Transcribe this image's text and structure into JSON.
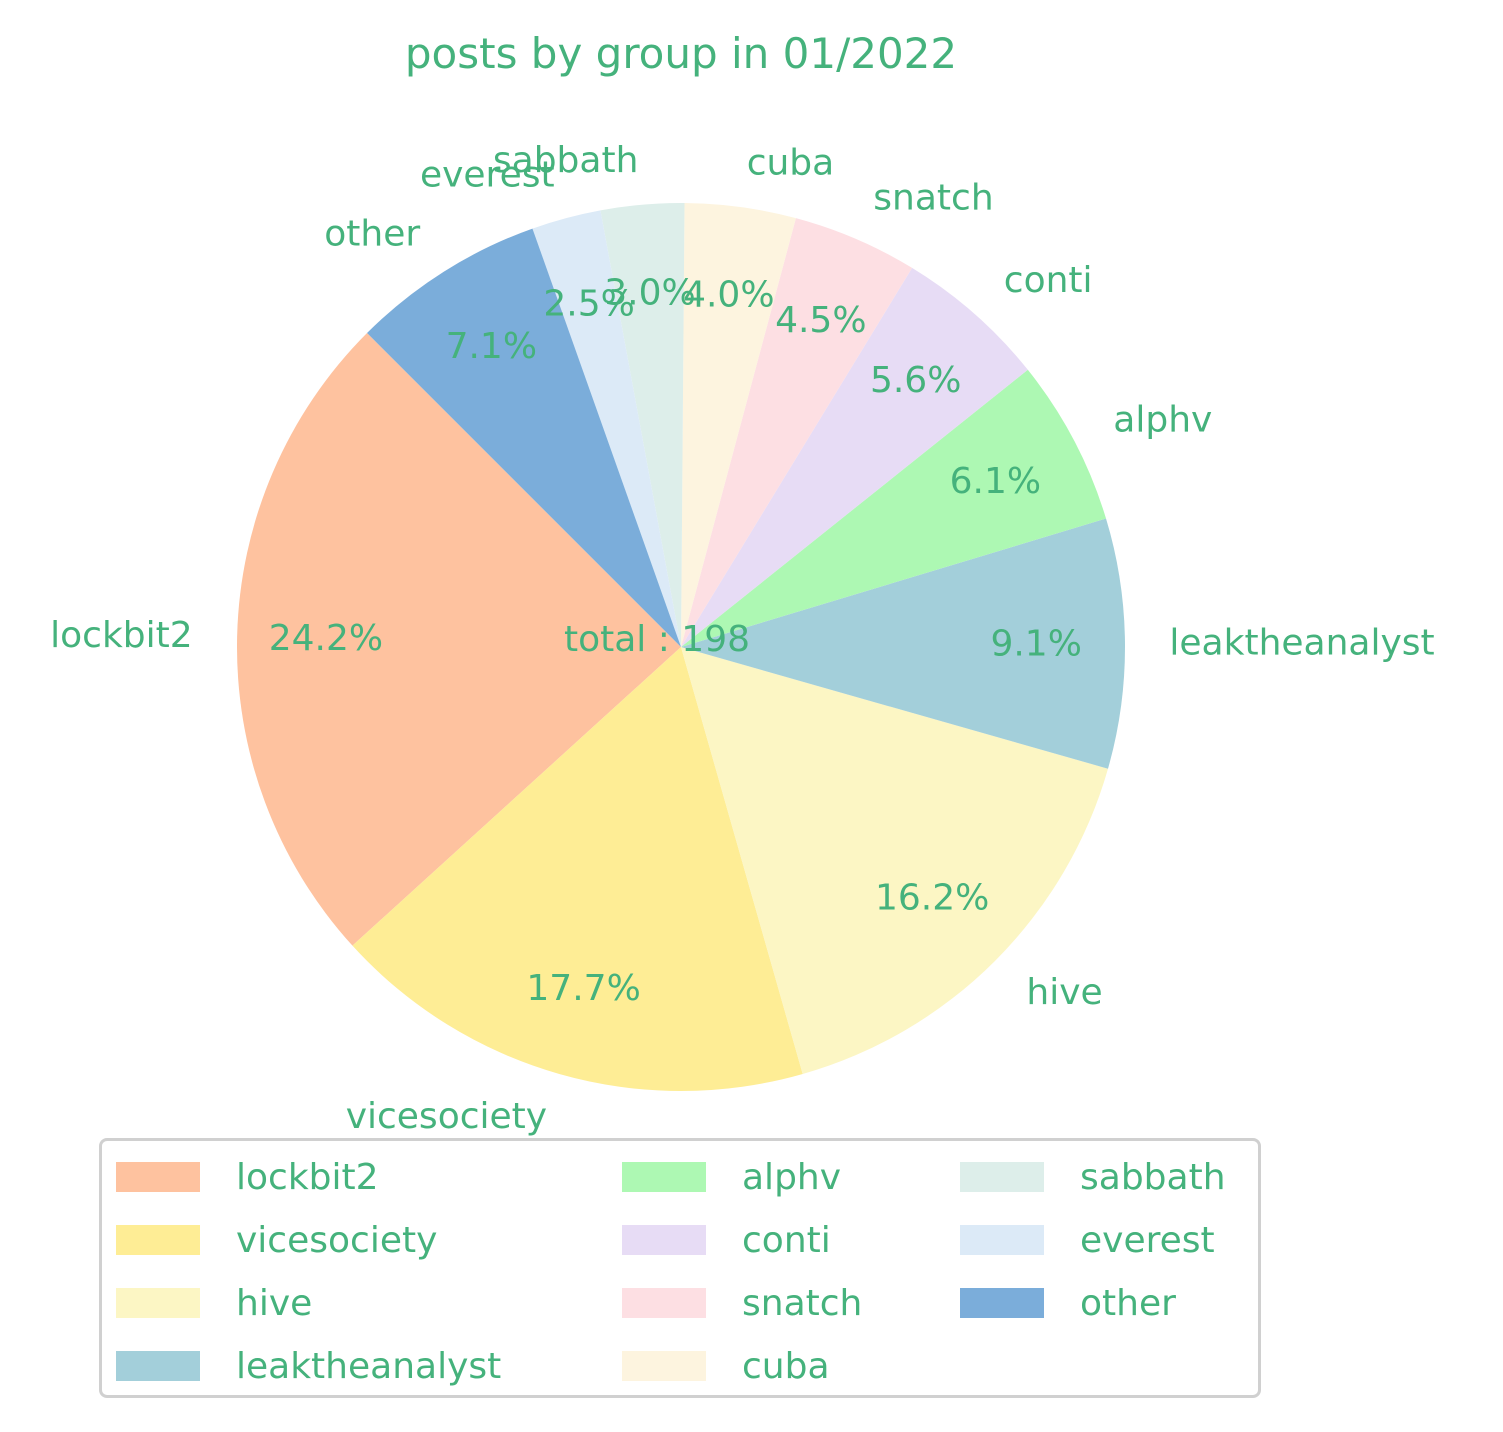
{
  "chart_data": {
    "type": "pie",
    "title": "posts by group in 01/2022",
    "center_text": "total : 198",
    "text_color": "#45b27c",
    "slices": [
      {
        "label": "lockbit2",
        "value": 48,
        "pct": "24.2%",
        "color": "#fec29f"
      },
      {
        "label": "vicesociety",
        "value": 35,
        "pct": "17.7%",
        "color": "#feed95"
      },
      {
        "label": "hive",
        "value": 32,
        "pct": "16.2%",
        "color": "#fcf6c4"
      },
      {
        "label": "leaktheanalyst",
        "value": 18,
        "pct": "9.1%",
        "color": "#a3cfda"
      },
      {
        "label": "alphv",
        "value": 12,
        "pct": "6.1%",
        "color": "#adf8b3"
      },
      {
        "label": "conti",
        "value": 11,
        "pct": "5.6%",
        "color": "#e7dcf5"
      },
      {
        "label": "snatch",
        "value": 9,
        "pct": "4.5%",
        "color": "#fddfe3"
      },
      {
        "label": "cuba",
        "value": 8,
        "pct": "4.0%",
        "color": "#fdf4df"
      },
      {
        "label": "sabbath",
        "value": 6,
        "pct": "3.0%",
        "color": "#ddeeea"
      },
      {
        "label": "everest",
        "value": 5,
        "pct": "2.5%",
        "color": "#dceaf7"
      },
      {
        "label": "other",
        "value": 14,
        "pct": "7.1%",
        "color": "#7badda"
      }
    ],
    "start_angle_deg": 135,
    "direction": "counterclockwise",
    "legend_position": "bottom",
    "legend_columns": 3
  }
}
